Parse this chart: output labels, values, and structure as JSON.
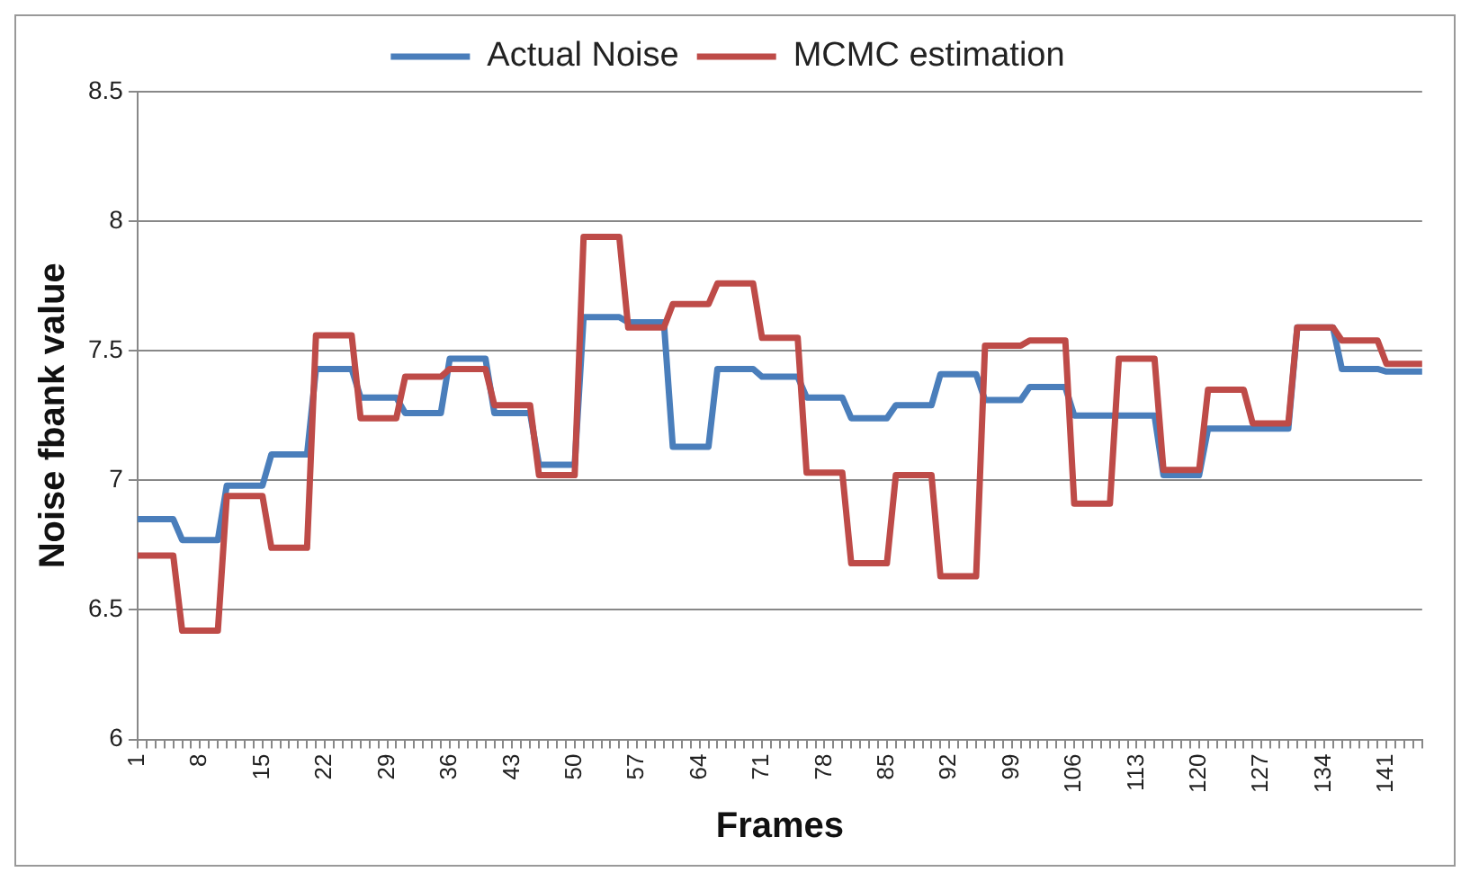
{
  "chart_data": {
    "type": "line",
    "xlabel": "Frames",
    "ylabel": "Noise fbank value",
    "legend": "top",
    "grid": "y",
    "marker": "none",
    "line_style": "solid",
    "ylim": [
      6,
      8.5
    ],
    "yticks": [
      6,
      6.5,
      7,
      7.5,
      8,
      8.5
    ],
    "categories": [
      "1",
      null,
      null,
      null,
      null,
      null,
      null,
      "8",
      null,
      null,
      null,
      null,
      null,
      null,
      "15",
      null,
      null,
      null,
      null,
      null,
      null,
      "22",
      null,
      null,
      null,
      null,
      null,
      null,
      "29",
      null,
      null,
      null,
      null,
      null,
      null,
      "36",
      null,
      null,
      null,
      null,
      null,
      null,
      "43",
      null,
      null,
      null,
      null,
      null,
      null,
      "50",
      null,
      null,
      null,
      null,
      null,
      null,
      "57",
      null,
      null,
      null,
      null,
      null,
      null,
      "64",
      null,
      null,
      null,
      null,
      null,
      null,
      "71",
      null,
      null,
      null,
      null,
      null,
      null,
      "78",
      null,
      null,
      null,
      null,
      null,
      null,
      "85",
      null,
      null,
      null,
      null,
      null,
      null,
      "92",
      null,
      null,
      null,
      null,
      null,
      null,
      "99",
      null,
      null,
      null,
      null,
      null,
      null,
      "106",
      null,
      null,
      null,
      null,
      null,
      null,
      "113",
      null,
      null,
      null,
      null,
      null,
      null,
      "120",
      null,
      null,
      null,
      null,
      null,
      null,
      "127",
      null,
      null,
      null,
      null,
      null,
      null,
      "134",
      null,
      null,
      null,
      null,
      null,
      null,
      "141",
      null,
      null,
      null,
      null
    ],
    "series": [
      {
        "name": "Actual Noise",
        "color": "#4a7ebb",
        "values": [
          6.85,
          6.85,
          6.85,
          6.85,
          6.85,
          6.77,
          6.77,
          6.77,
          6.77,
          6.77,
          6.98,
          6.98,
          6.98,
          6.98,
          6.98,
          7.1,
          7.1,
          7.1,
          7.1,
          7.1,
          7.43,
          7.43,
          7.43,
          7.43,
          7.43,
          7.32,
          7.32,
          7.32,
          7.32,
          7.32,
          7.26,
          7.26,
          7.26,
          7.26,
          7.26,
          7.47,
          7.47,
          7.47,
          7.47,
          7.47,
          7.26,
          7.26,
          7.26,
          7.26,
          7.26,
          7.06,
          7.06,
          7.06,
          7.06,
          7.06,
          7.63,
          7.63,
          7.63,
          7.63,
          7.63,
          7.61,
          7.61,
          7.61,
          7.61,
          7.61,
          7.13,
          7.13,
          7.13,
          7.13,
          7.13,
          7.43,
          7.43,
          7.43,
          7.43,
          7.43,
          7.4,
          7.4,
          7.4,
          7.4,
          7.4,
          7.32,
          7.32,
          7.32,
          7.32,
          7.32,
          7.24,
          7.24,
          7.24,
          7.24,
          7.24,
          7.29,
          7.29,
          7.29,
          7.29,
          7.29,
          7.41,
          7.41,
          7.41,
          7.41,
          7.41,
          7.31,
          7.31,
          7.31,
          7.31,
          7.31,
          7.36,
          7.36,
          7.36,
          7.36,
          7.36,
          7.25,
          7.25,
          7.25,
          7.25,
          7.25,
          7.25,
          7.25,
          7.25,
          7.25,
          7.25,
          7.02,
          7.02,
          7.02,
          7.02,
          7.02,
          7.2,
          7.2,
          7.2,
          7.2,
          7.2,
          7.2,
          7.2,
          7.2,
          7.2,
          7.2,
          7.59,
          7.59,
          7.59,
          7.59,
          7.59,
          7.43,
          7.43,
          7.43,
          7.43,
          7.43,
          7.42,
          7.42,
          7.42,
          7.42,
          7.42
        ]
      },
      {
        "name": "MCMC estimation",
        "color": "#be4b48",
        "values": [
          6.71,
          6.71,
          6.71,
          6.71,
          6.71,
          6.42,
          6.42,
          6.42,
          6.42,
          6.42,
          6.94,
          6.94,
          6.94,
          6.94,
          6.94,
          6.74,
          6.74,
          6.74,
          6.74,
          6.74,
          7.56,
          7.56,
          7.56,
          7.56,
          7.56,
          7.24,
          7.24,
          7.24,
          7.24,
          7.24,
          7.4,
          7.4,
          7.4,
          7.4,
          7.4,
          7.43,
          7.43,
          7.43,
          7.43,
          7.43,
          7.29,
          7.29,
          7.29,
          7.29,
          7.29,
          7.02,
          7.02,
          7.02,
          7.02,
          7.02,
          7.94,
          7.94,
          7.94,
          7.94,
          7.94,
          7.59,
          7.59,
          7.59,
          7.59,
          7.59,
          7.68,
          7.68,
          7.68,
          7.68,
          7.68,
          7.76,
          7.76,
          7.76,
          7.76,
          7.76,
          7.55,
          7.55,
          7.55,
          7.55,
          7.55,
          7.03,
          7.03,
          7.03,
          7.03,
          7.03,
          6.68,
          6.68,
          6.68,
          6.68,
          6.68,
          7.02,
          7.02,
          7.02,
          7.02,
          7.02,
          6.63,
          6.63,
          6.63,
          6.63,
          6.63,
          7.52,
          7.52,
          7.52,
          7.52,
          7.52,
          7.54,
          7.54,
          7.54,
          7.54,
          7.54,
          6.91,
          6.91,
          6.91,
          6.91,
          6.91,
          7.47,
          7.47,
          7.47,
          7.47,
          7.47,
          7.04,
          7.04,
          7.04,
          7.04,
          7.04,
          7.35,
          7.35,
          7.35,
          7.35,
          7.35,
          7.22,
          7.22,
          7.22,
          7.22,
          7.22,
          7.59,
          7.59,
          7.59,
          7.59,
          7.59,
          7.54,
          7.54,
          7.54,
          7.54,
          7.54,
          7.45,
          7.45,
          7.45,
          7.45,
          7.45
        ]
      }
    ]
  }
}
